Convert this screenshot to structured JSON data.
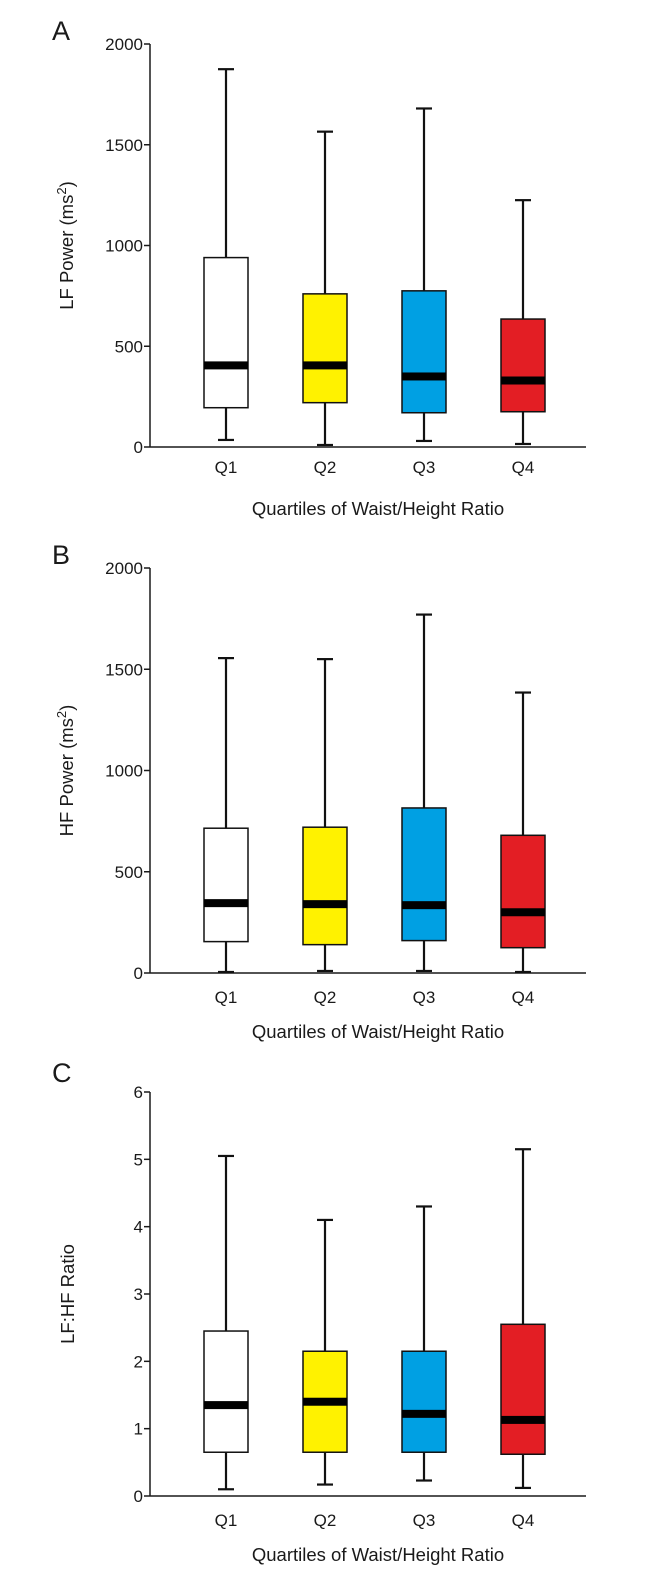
{
  "chart_data": [
    {
      "type": "box",
      "panel_label": "A",
      "xlabel": "Quartiles of Waist/Height Ratio",
      "ylabel_main": "LF Power (ms",
      "ylabel_sup": "2",
      "ylabel_end": ")",
      "ylim": [
        0,
        2000
      ],
      "yticks": [
        0,
        500,
        1000,
        1500,
        2000
      ],
      "yticklabels": [
        "0",
        "500",
        "1000",
        "1500",
        "2000"
      ],
      "categories": [
        "Q1",
        "Q2",
        "Q3",
        "Q4"
      ],
      "boxes": [
        {
          "category": "Q1",
          "min": 35,
          "q1": 195,
          "median": 405,
          "q3": 940,
          "max": 1875,
          "color": "#ffffff"
        },
        {
          "category": "Q2",
          "min": 10,
          "q1": 220,
          "median": 405,
          "q3": 760,
          "max": 1565,
          "color": "#fff200"
        },
        {
          "category": "Q3",
          "min": 30,
          "q1": 170,
          "median": 350,
          "q3": 775,
          "max": 1680,
          "color": "#00a0e3"
        },
        {
          "category": "Q4",
          "min": 15,
          "q1": 175,
          "median": 330,
          "q3": 635,
          "max": 1225,
          "color": "#e31e24"
        }
      ]
    },
    {
      "type": "box",
      "panel_label": "B",
      "xlabel": "Quartiles of Waist/Height Ratio",
      "ylabel_main": "HF Power (ms",
      "ylabel_sup": "2",
      "ylabel_end": ")",
      "ylim": [
        0,
        2000
      ],
      "yticks": [
        0,
        500,
        1000,
        1500,
        2000
      ],
      "yticklabels": [
        "0",
        "500",
        "1000",
        "1500",
        "2000"
      ],
      "categories": [
        "Q1",
        "Q2",
        "Q3",
        "Q4"
      ],
      "boxes": [
        {
          "category": "Q1",
          "min": 5,
          "q1": 155,
          "median": 345,
          "q3": 715,
          "max": 1555,
          "color": "#ffffff"
        },
        {
          "category": "Q2",
          "min": 10,
          "q1": 140,
          "median": 340,
          "q3": 720,
          "max": 1550,
          "color": "#fff200"
        },
        {
          "category": "Q3",
          "min": 10,
          "q1": 160,
          "median": 335,
          "q3": 815,
          "max": 1770,
          "color": "#00a0e3"
        },
        {
          "category": "Q4",
          "min": 5,
          "q1": 125,
          "median": 300,
          "q3": 680,
          "max": 1385,
          "color": "#e31e24"
        }
      ]
    },
    {
      "type": "box",
      "panel_label": "C",
      "xlabel": "Quartiles of Waist/Height Ratio",
      "ylabel_main": "LF:HF Ratio",
      "ylabel_sup": "",
      "ylabel_end": "",
      "ylim": [
        0,
        6
      ],
      "yticks": [
        0,
        1,
        2,
        3,
        4,
        5,
        6
      ],
      "yticklabels": [
        "0",
        "1",
        "2",
        "3",
        "4",
        "5",
        "6"
      ],
      "categories": [
        "Q1",
        "Q2",
        "Q3",
        "Q4"
      ],
      "boxes": [
        {
          "category": "Q1",
          "min": 0.1,
          "q1": 0.65,
          "median": 1.35,
          "q3": 2.45,
          "max": 5.05,
          "color": "#ffffff"
        },
        {
          "category": "Q2",
          "min": 0.17,
          "q1": 0.65,
          "median": 1.4,
          "q3": 2.15,
          "max": 4.1,
          "color": "#fff200"
        },
        {
          "category": "Q3",
          "min": 0.23,
          "q1": 0.65,
          "median": 1.22,
          "q3": 2.15,
          "max": 4.3,
          "color": "#00a0e3"
        },
        {
          "category": "Q4",
          "min": 0.12,
          "q1": 0.62,
          "median": 1.13,
          "q3": 2.55,
          "max": 5.15,
          "color": "#e31e24"
        }
      ]
    }
  ]
}
